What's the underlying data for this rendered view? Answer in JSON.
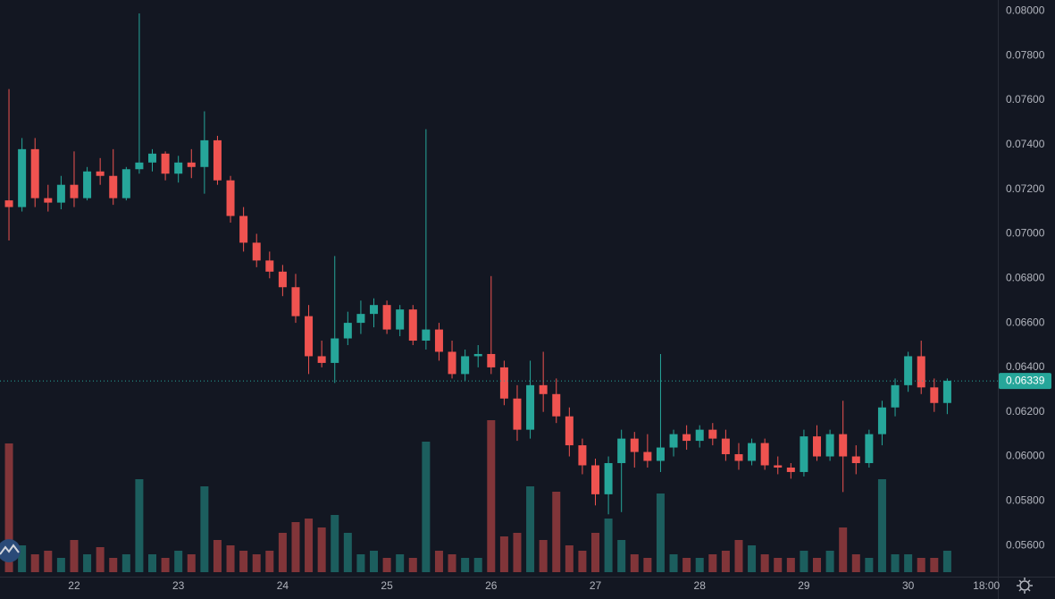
{
  "chart_data": {
    "type": "candlestick",
    "up_color": "#26a69a",
    "down_color": "#ef5350",
    "grid": true,
    "xlim": [
      21.289,
      30.86
    ],
    "ylim": [
      0.0546,
      0.0805
    ],
    "volume_ylim": [
      0,
      100
    ],
    "xticks": [
      22,
      23,
      24,
      25,
      26,
      27,
      28,
      29,
      30,
      {
        "value": 30.75,
        "label": "18:00"
      }
    ],
    "yticks": [
      {
        "value": 0.056,
        "label": "0.05600"
      },
      {
        "value": 0.058,
        "label": "0.05800"
      },
      {
        "value": 0.06,
        "label": "0.06000"
      },
      {
        "value": 0.062,
        "label": "0.06200"
      },
      {
        "value": 0.064,
        "label": "0.06400"
      },
      {
        "value": 0.066,
        "label": "0.06600"
      },
      {
        "value": 0.068,
        "label": "0.06800"
      },
      {
        "value": 0.07,
        "label": "0.07000"
      },
      {
        "value": 0.072,
        "label": "0.07200"
      },
      {
        "value": 0.074,
        "label": "0.07400"
      },
      {
        "value": 0.076,
        "label": "0.07600"
      },
      {
        "value": 0.078,
        "label": "0.07800"
      },
      {
        "value": 0.08,
        "label": "0.08000"
      }
    ],
    "last_price": 0.06339,
    "x": [
      21.375,
      21.5,
      21.625,
      21.75,
      21.875,
      22,
      22.125,
      22.25,
      22.375,
      22.5,
      22.625,
      22.75,
      22.875,
      23,
      23.125,
      23.25,
      23.375,
      23.5,
      23.625,
      23.75,
      23.875,
      24,
      24.125,
      24.25,
      24.375,
      24.5,
      24.625,
      24.75,
      24.875,
      25,
      25.125,
      25.25,
      25.375,
      25.5,
      25.625,
      25.75,
      25.875,
      26,
      26.125,
      26.25,
      26.375,
      26.5,
      26.625,
      26.75,
      26.875,
      27,
      27.125,
      27.25,
      27.375,
      27.5,
      27.625,
      27.75,
      27.875,
      28,
      28.125,
      28.25,
      28.375,
      28.5,
      28.625,
      28.75,
      28.875,
      29,
      29.125,
      29.25,
      29.375,
      29.5,
      29.625,
      29.75,
      29.875,
      30,
      30.125,
      30.25,
      30.375
    ],
    "open": [
      0.0715,
      0.0712,
      0.0738,
      0.0716,
      0.0714,
      0.0722,
      0.0716,
      0.0728,
      0.0726,
      0.0716,
      0.0729,
      0.0732,
      0.0736,
      0.0727,
      0.0732,
      0.073,
      0.0742,
      0.0724,
      0.0708,
      0.0696,
      0.0688,
      0.0683,
      0.0676,
      0.0663,
      0.0645,
      0.0642,
      0.0653,
      0.066,
      0.0664,
      0.0668,
      0.0657,
      0.0666,
      0.0652,
      0.0657,
      0.0647,
      0.0637,
      0.0645,
      0.0646,
      0.064,
      0.0626,
      0.0612,
      0.0632,
      0.0628,
      0.0618,
      0.0605,
      0.0596,
      0.0583,
      0.0597,
      0.0608,
      0.0602,
      0.0598,
      0.0604,
      0.061,
      0.0607,
      0.0612,
      0.0608,
      0.0601,
      0.0598,
      0.0606,
      0.0596,
      0.0595,
      0.0593,
      0.0609,
      0.06,
      0.061,
      0.06,
      0.0597,
      0.061,
      0.0622,
      0.0632,
      0.0645,
      0.0631,
      0.0624
    ],
    "high": [
      0.0765,
      0.0743,
      0.0743,
      0.0722,
      0.0726,
      0.0737,
      0.073,
      0.0734,
      0.0738,
      0.073,
      0.0799,
      0.0738,
      0.0737,
      0.0735,
      0.0738,
      0.0755,
      0.0744,
      0.0726,
      0.0712,
      0.07,
      0.0692,
      0.0686,
      0.0682,
      0.0668,
      0.0652,
      0.069,
      0.0665,
      0.067,
      0.0671,
      0.067,
      0.0668,
      0.0668,
      0.0747,
      0.066,
      0.0652,
      0.0648,
      0.065,
      0.0681,
      0.0643,
      0.0632,
      0.0643,
      0.0647,
      0.0635,
      0.0622,
      0.0608,
      0.0599,
      0.06,
      0.0612,
      0.0611,
      0.061,
      0.0646,
      0.0612,
      0.0614,
      0.0614,
      0.0615,
      0.0612,
      0.0606,
      0.0608,
      0.0608,
      0.06,
      0.0597,
      0.0612,
      0.0614,
      0.0612,
      0.0625,
      0.0605,
      0.0612,
      0.0625,
      0.0635,
      0.0647,
      0.0652,
      0.0635,
      0.0635
    ],
    "low": [
      0.0697,
      0.071,
      0.0712,
      0.071,
      0.0711,
      0.0712,
      0.0715,
      0.0722,
      0.0713,
      0.0715,
      0.0727,
      0.0728,
      0.0724,
      0.0723,
      0.0725,
      0.0718,
      0.0722,
      0.0705,
      0.0692,
      0.0685,
      0.068,
      0.0672,
      0.066,
      0.0637,
      0.064,
      0.0633,
      0.065,
      0.0655,
      0.0658,
      0.0655,
      0.0654,
      0.065,
      0.0648,
      0.0643,
      0.0635,
      0.0634,
      0.064,
      0.0637,
      0.0623,
      0.0607,
      0.0608,
      0.062,
      0.0615,
      0.06,
      0.0592,
      0.0578,
      0.0574,
      0.0575,
      0.0595,
      0.0595,
      0.0593,
      0.06,
      0.0603,
      0.0604,
      0.0605,
      0.0598,
      0.0594,
      0.0596,
      0.0594,
      0.0592,
      0.059,
      0.0591,
      0.0598,
      0.0598,
      0.0584,
      0.0592,
      0.0595,
      0.0605,
      0.0618,
      0.0629,
      0.0628,
      0.062,
      0.0619
    ],
    "close": [
      0.0712,
      0.0738,
      0.0716,
      0.0714,
      0.0722,
      0.0716,
      0.0728,
      0.0726,
      0.0716,
      0.0729,
      0.0732,
      0.0736,
      0.0727,
      0.0732,
      0.073,
      0.0742,
      0.0724,
      0.0708,
      0.0696,
      0.0688,
      0.0683,
      0.0676,
      0.0663,
      0.0645,
      0.0642,
      0.0653,
      0.066,
      0.0664,
      0.0668,
      0.0657,
      0.0666,
      0.0652,
      0.0657,
      0.0647,
      0.0637,
      0.0645,
      0.0646,
      0.064,
      0.0626,
      0.0612,
      0.0632,
      0.0628,
      0.0618,
      0.0605,
      0.0596,
      0.0583,
      0.0597,
      0.0608,
      0.0602,
      0.0598,
      0.0604,
      0.061,
      0.0607,
      0.0612,
      0.0608,
      0.0601,
      0.0598,
      0.0606,
      0.0596,
      0.0595,
      0.0593,
      0.0609,
      0.06,
      0.061,
      0.06,
      0.0597,
      0.061,
      0.0622,
      0.0632,
      0.0645,
      0.0631,
      0.0624,
      0.0634
    ],
    "volume": [
      72,
      15,
      10,
      12,
      8,
      18,
      10,
      14,
      8,
      10,
      52,
      10,
      8,
      12,
      10,
      48,
      18,
      15,
      12,
      10,
      12,
      22,
      28,
      30,
      25,
      32,
      22,
      10,
      12,
      8,
      10,
      8,
      73,
      12,
      10,
      8,
      8,
      85,
      20,
      22,
      48,
      18,
      45,
      15,
      12,
      22,
      30,
      18,
      10,
      8,
      44,
      10,
      8,
      8,
      10,
      12,
      18,
      15,
      10,
      8,
      8,
      12,
      8,
      12,
      25,
      10,
      8,
      52,
      10,
      10,
      8,
      8,
      12
    ]
  }
}
